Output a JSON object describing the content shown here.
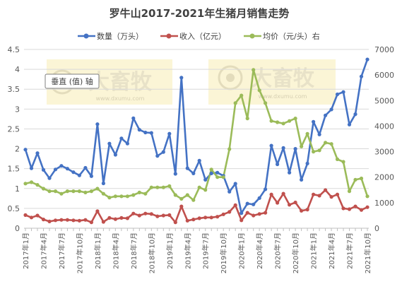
{
  "chart_data": {
    "type": "line",
    "title": "罗牛山2017-2021年生猪月销售走势",
    "legend_position": "top",
    "grid": "horizontal",
    "left_axis": {
      "ylim": [
        0,
        4.5
      ],
      "ticks": [
        0,
        0.5,
        1,
        1.5,
        2,
        2.5,
        3,
        3.5,
        4,
        4.5
      ],
      "tick_labels": [
        "0",
        "0.5",
        "1",
        "1.5",
        "2",
        "2.5",
        "3",
        "3.5",
        "4",
        "4.5"
      ]
    },
    "right_axis": {
      "ylim": [
        0,
        7000
      ],
      "ticks": [
        0,
        1000,
        2000,
        3000,
        4000,
        5000,
        6000,
        7000
      ],
      "tick_labels": [
        "0",
        "1000",
        "2000",
        "3000",
        "4000",
        "5000",
        "6000",
        "7000"
      ]
    },
    "x_tick_labels": [
      "2017年1月",
      "2017年4月",
      "2017年7月",
      "2017年10月",
      "2018年1月",
      "2018年4月",
      "2018年7月",
      "2018年10月",
      "2019年1月",
      "2019年4月",
      "2019年7月",
      "2019年10月",
      "2020年1月",
      "2020年4月",
      "2020年7月",
      "2020年10月",
      "2021年1月",
      "2021年4月",
      "2021年7月",
      "2021年10月"
    ],
    "x_tick_positions": [
      0,
      3,
      6,
      9,
      12,
      15,
      18,
      21,
      24,
      27,
      30,
      33,
      36,
      39,
      42,
      45,
      48,
      51,
      54,
      57
    ],
    "series": [
      {
        "name": "数量（万头）",
        "axis": "left",
        "color": "#4472c4",
        "values": [
          1.98,
          1.51,
          1.89,
          1.47,
          1.26,
          1.48,
          1.57,
          1.5,
          1.41,
          1.33,
          1.52,
          1.31,
          2.62,
          1.13,
          2.13,
          1.85,
          2.26,
          2.13,
          2.77,
          2.48,
          2.41,
          2.4,
          1.82,
          1.92,
          2.38,
          1.37,
          3.79,
          1.51,
          1.38,
          1.7,
          1.22,
          1.38,
          1.4,
          1.32,
          0.92,
          1.12,
          0.38,
          0.62,
          0.6,
          0.76,
          0.98,
          2.08,
          1.61,
          2.02,
          1.4,
          2.0,
          1.22,
          1.63,
          2.68,
          2.36,
          2.84,
          2.99,
          3.37,
          3.43,
          2.61,
          2.87,
          3.82,
          4.25
        ]
      },
      {
        "name": "收入（亿元）",
        "axis": "left",
        "color": "#c0504d",
        "values": [
          0.33,
          0.27,
          0.32,
          0.22,
          0.17,
          0.2,
          0.21,
          0.21,
          0.2,
          0.19,
          0.21,
          0.15,
          0.43,
          0.16,
          0.26,
          0.23,
          0.26,
          0.25,
          0.37,
          0.32,
          0.37,
          0.36,
          0.3,
          0.32,
          0.33,
          0.15,
          0.55,
          0.19,
          0.22,
          0.25,
          0.27,
          0.27,
          0.29,
          0.35,
          0.41,
          0.58,
          0.2,
          0.39,
          0.32,
          0.36,
          0.39,
          0.85,
          0.64,
          0.87,
          0.59,
          0.65,
          0.44,
          0.47,
          0.85,
          0.82,
          0.96,
          0.79,
          0.85,
          0.5,
          0.48,
          0.55,
          0.46,
          0.53
        ]
      },
      {
        "name": "均价（元/头）右",
        "axis": "right",
        "color": "#9bbb59",
        "values": [
          1750,
          1800,
          1700,
          1550,
          1450,
          1450,
          1350,
          1450,
          1450,
          1450,
          1400,
          1450,
          1550,
          1350,
          1200,
          1250,
          1250,
          1250,
          1300,
          1400,
          1350,
          1600,
          1600,
          1600,
          1650,
          1300,
          1150,
          1300,
          1100,
          1600,
          1500,
          2300,
          2000,
          2000,
          3100,
          4900,
          5200,
          4300,
          6200,
          5400,
          4900,
          4200,
          4150,
          4100,
          4200,
          4300,
          3200,
          3700,
          3000,
          3050,
          3350,
          3300,
          2700,
          2600,
          1450,
          1900,
          1950,
          1250
        ]
      }
    ]
  },
  "watermark": {
    "brand": "大畜牧",
    "url": "www.dxumu.com",
    "tooltip_label": "垂直 (值) 轴"
  }
}
